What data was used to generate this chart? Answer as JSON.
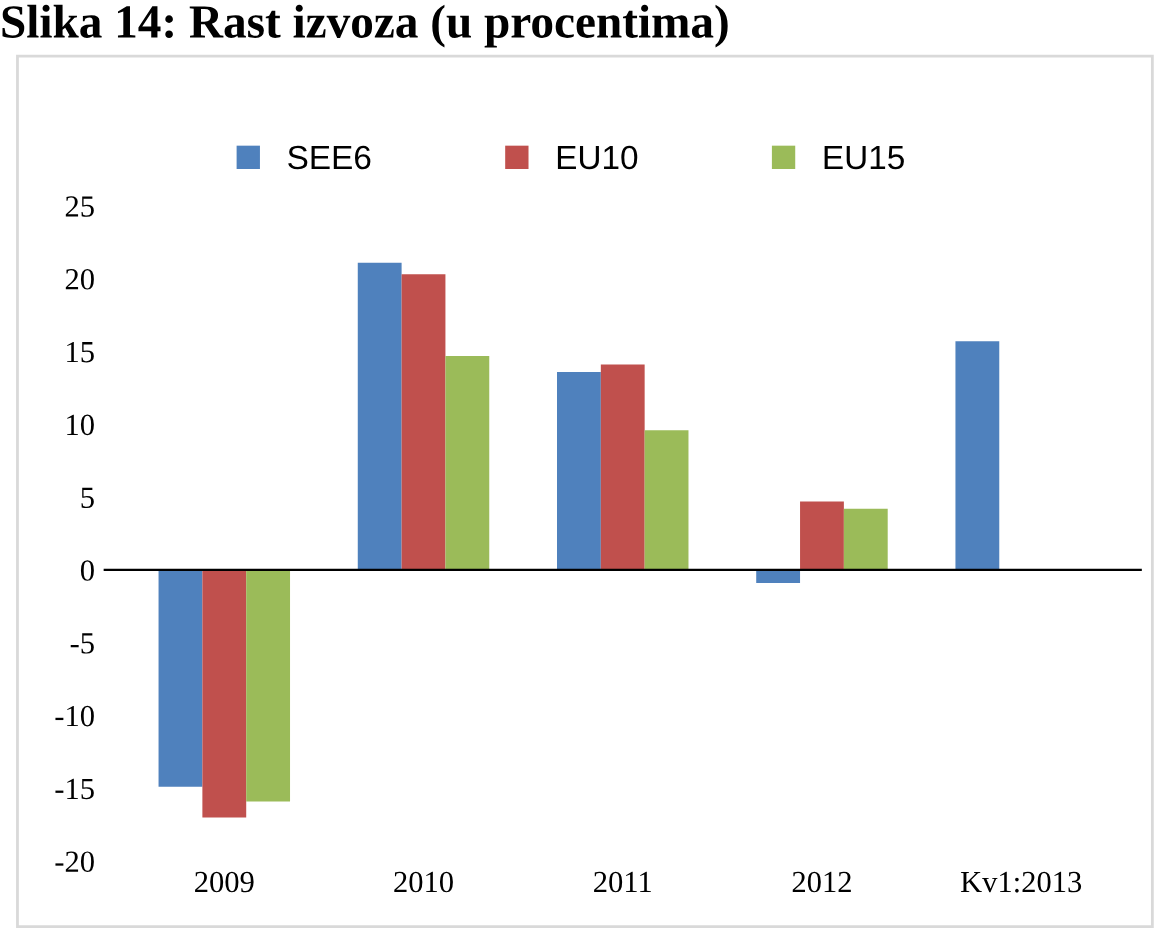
{
  "chart_data": {
    "type": "bar",
    "title": "Slika 14: Rast izvoza (u procentima)",
    "categories": [
      "2009",
      "2010",
      "2011",
      "2012",
      "Kv1:2013"
    ],
    "series": [
      {
        "name": "SEE6",
        "color": "#4f81bd",
        "values": [
          -14.9,
          21.1,
          13.6,
          -0.9,
          15.7
        ]
      },
      {
        "name": "EU10",
        "color": "#c0504d",
        "values": [
          -17.0,
          20.3,
          14.1,
          4.7,
          null
        ]
      },
      {
        "name": "EU15",
        "color": "#9bbb59",
        "values": [
          -15.9,
          14.7,
          9.6,
          4.2,
          null
        ]
      }
    ],
    "ylim": [
      -20,
      25
    ],
    "yticks": [
      -20,
      -15,
      -10,
      -5,
      0,
      5,
      10,
      15,
      20,
      25
    ],
    "legend": "top"
  }
}
